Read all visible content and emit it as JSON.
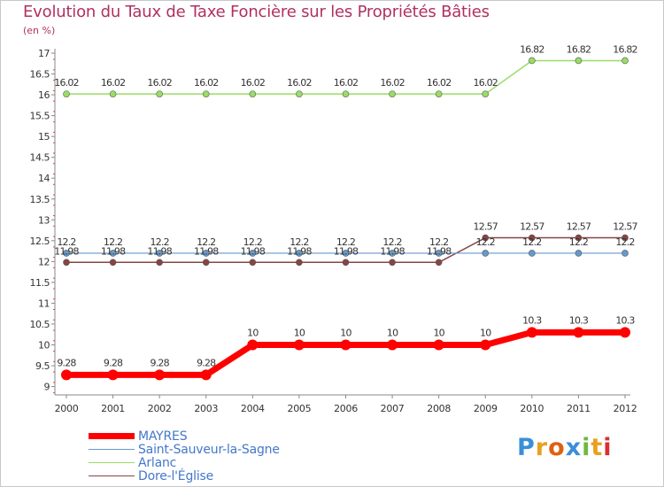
{
  "title": "Evolution du Taux de Taxe Foncière sur les Propriétés Bâties",
  "unit_label": "(en %)",
  "logo": {
    "letters": [
      "P",
      "r",
      "o",
      "x",
      "i",
      "t",
      "i"
    ],
    "colors": [
      "#3a8fd8",
      "#e8a020",
      "#e06010",
      "#3a8fd8",
      "#70b840",
      "#e8a020",
      "#d83030"
    ]
  },
  "chart_data": {
    "type": "line",
    "title": "Evolution du Taux de Taxe Foncière sur les Propriétés Bâties",
    "ylabel": "(en %)",
    "xlabel": "",
    "x": [
      "2000",
      "2001",
      "2002",
      "2003",
      "2004",
      "2005",
      "2006",
      "2007",
      "2008",
      "2009",
      "2010",
      "2011",
      "2012"
    ],
    "ylim": [
      8.8,
      17
    ],
    "yticks": [
      "9",
      "9.5",
      "10",
      "10.5",
      "11",
      "11.5",
      "12",
      "12.5",
      "13",
      "13.5",
      "14",
      "14.5",
      "15",
      "15.5",
      "16",
      "16.5",
      "17"
    ],
    "grid": false,
    "series": [
      {
        "name": "MAYRES",
        "color": "#ff0000",
        "values": [
          9.28,
          9.28,
          9.28,
          9.28,
          10,
          10,
          10,
          10,
          10,
          10,
          10.3,
          10.3,
          10.3
        ],
        "labels": [
          "9.28",
          "9.28",
          "9.28",
          "9.28",
          "10",
          "10",
          "10",
          "10",
          "10",
          "10",
          "10.3",
          "10.3",
          "10.3"
        ]
      },
      {
        "name": "Saint-Sauveur-la-Sagne",
        "color": "#6699cc",
        "values": [
          12.2,
          12.2,
          12.2,
          12.2,
          12.2,
          12.2,
          12.2,
          12.2,
          12.2,
          12.2,
          12.2,
          12.2,
          12.2
        ],
        "labels": [
          "12.2",
          "12.2",
          "12.2",
          "12.2",
          "12.2",
          "12.2",
          "12.2",
          "12.2",
          "12.2",
          "12.2",
          "12.2",
          "12.2",
          "12.2"
        ]
      },
      {
        "name": "Arlanc",
        "color": "#99dd66",
        "values": [
          16.02,
          16.02,
          16.02,
          16.02,
          16.02,
          16.02,
          16.02,
          16.02,
          16.02,
          16.02,
          16.82,
          16.82,
          16.82
        ],
        "labels": [
          "16.02",
          "16.02",
          "16.02",
          "16.02",
          "16.02",
          "16.02",
          "16.02",
          "16.02",
          "16.02",
          "16.02",
          "16.82",
          "16.82",
          "16.82"
        ]
      },
      {
        "name": "Dore-l'Église",
        "color": "#884444",
        "values": [
          11.98,
          11.98,
          11.98,
          11.98,
          11.98,
          11.98,
          11.98,
          11.98,
          11.98,
          12.57,
          12.57,
          12.57,
          12.57
        ],
        "labels": [
          "11.98",
          "11.98",
          "11.98",
          "11.98",
          "11.98",
          "11.98",
          "11.98",
          "11.98",
          "11.98",
          "12.57",
          "12.57",
          "12.57",
          "12.57"
        ]
      }
    ]
  }
}
